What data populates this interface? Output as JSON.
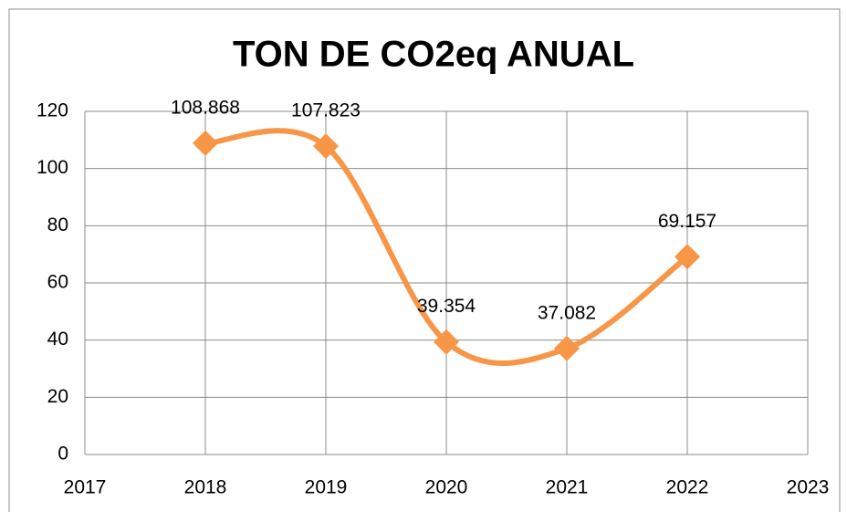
{
  "chart_data": {
    "type": "line",
    "title": "TON DE CO2eq ANUAL",
    "x": [
      2018,
      2019,
      2020,
      2021,
      2022
    ],
    "series": [
      {
        "name": "TON DE CO2eq ANUAL",
        "color": "#f79646",
        "values": [
          108.868,
          107.823,
          39.354,
          37.082,
          69.157
        ]
      }
    ],
    "xlim": [
      2017,
      2023
    ],
    "xticks": [
      2017,
      2018,
      2019,
      2020,
      2021,
      2022,
      2023
    ],
    "ylim": [
      0,
      120
    ],
    "yticks": [
      0,
      20,
      40,
      60,
      80,
      100,
      120
    ],
    "grid": true,
    "smooth": true
  }
}
